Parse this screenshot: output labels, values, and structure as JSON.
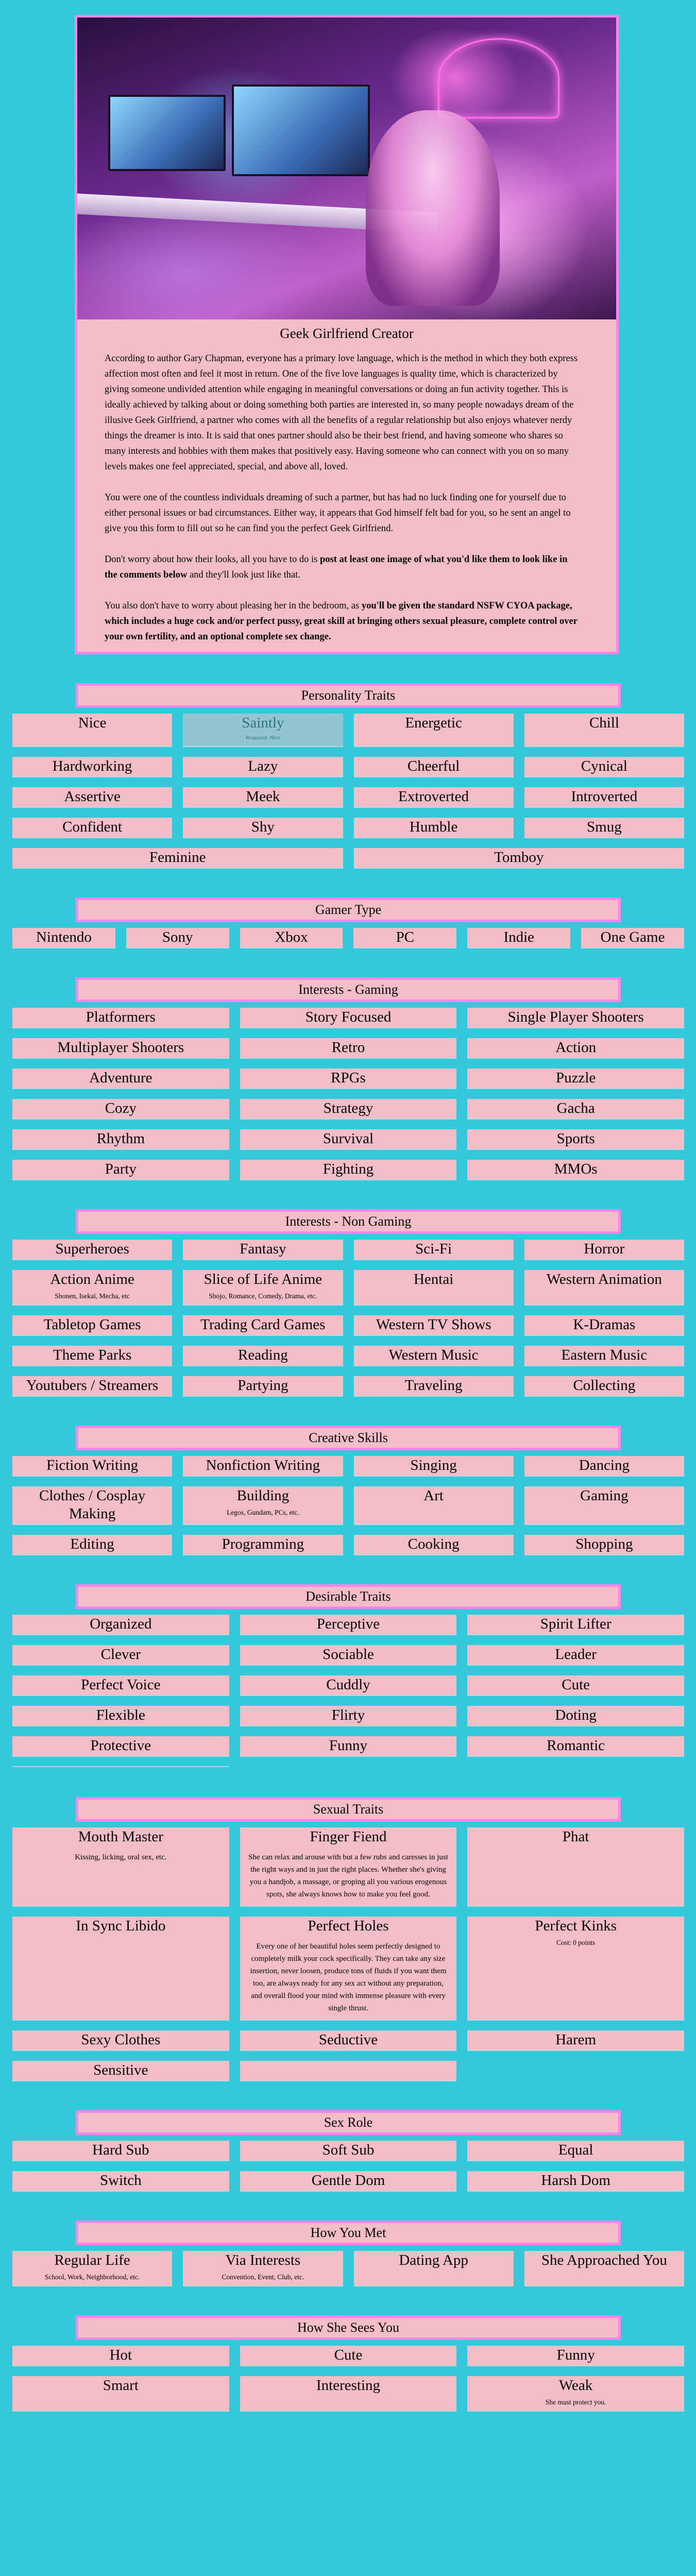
{
  "colors": {
    "background": "#33c9da",
    "tile": "#f2bdc6",
    "border": "#f985ea",
    "disabled_tile": "#93c4d2"
  },
  "intro": {
    "title": "Geek Girlfriend Creator",
    "p1": "According to author Gary Chapman, everyone has a primary love language, which is the method in which they both express affection most often and feel it most in return. One of the five love languages is quality time, which is characterized by giving someone undivided attention while engaging in meaningful conversations or doing an fun activity together. This is ideally achieved by talking about or doing something both parties are interested in, so many people nowadays dream of the illusive Geek Girlfriend, a partner who comes with all the benefits of a regular relationship but also enjoys whatever nerdy things the dreamer is into. It is said that ones partner should also be their best friend, and having someone who shares so many interests and hobbies with them makes that positively easy. Having someone who can connect with you on so many levels makes one feel appreciated, special, and above all, loved.",
    "p2": "You were one of the countless individuals dreaming of such a partner, but has had no luck finding one for yourself due to either personal issues or bad circumstances. Either way, it appears that God himself felt bad for you, so he sent an angel to give you this form to fill out so he can find you the perfect Geek Girlfriend.",
    "p3_a": "Don't worry about how their looks, all you have to do is ",
    "p3_b": "post at least one image of what you'd like them to look like in the comments below",
    "p3_c": " and they'll look just like that.",
    "p4_a": "You also don't have to worry about pleasing her in the bedroom, as ",
    "p4_b": "you'll be given the standard NSFW CYOA package, which includes a huge cock and/or perfect pussy, great skill at bringing others sexual pleasure, complete control over your own fertility, and an optional complete sex change."
  },
  "sections": [
    {
      "title": "Personality Traits",
      "cols": 4,
      "items": [
        {
          "label": "Nice"
        },
        {
          "label": "Saintly",
          "sub": "Required: Nice",
          "disabled": true
        },
        {
          "label": "Energetic"
        },
        {
          "label": "Chill"
        },
        {
          "label": "Hardworking"
        },
        {
          "label": "Lazy"
        },
        {
          "label": "Cheerful"
        },
        {
          "label": "Cynical"
        },
        {
          "label": "Assertive"
        },
        {
          "label": "Meek"
        },
        {
          "label": "Extroverted"
        },
        {
          "label": "Introverted"
        },
        {
          "label": "Confident"
        },
        {
          "label": "Shy"
        },
        {
          "label": "Humble"
        },
        {
          "label": "Smug"
        },
        {
          "label": "Feminine",
          "span": 2
        },
        {
          "label": "Tomboy",
          "span": 2
        }
      ]
    },
    {
      "title": "Gamer Type",
      "cols": 6,
      "items": [
        {
          "label": "Nintendo"
        },
        {
          "label": "Sony"
        },
        {
          "label": "Xbox"
        },
        {
          "label": "PC"
        },
        {
          "label": "Indie"
        },
        {
          "label": "One Game"
        }
      ]
    },
    {
      "title": "Interests - Gaming",
      "cols": 3,
      "items": [
        {
          "label": "Platformers"
        },
        {
          "label": "Story Focused"
        },
        {
          "label": "Single Player Shooters"
        },
        {
          "label": "Multiplayer Shooters"
        },
        {
          "label": "Retro"
        },
        {
          "label": "Action"
        },
        {
          "label": "Adventure"
        },
        {
          "label": "RPGs"
        },
        {
          "label": "Puzzle"
        },
        {
          "label": "Cozy"
        },
        {
          "label": "Strategy"
        },
        {
          "label": "Gacha"
        },
        {
          "label": "Rhythm"
        },
        {
          "label": "Survival"
        },
        {
          "label": "Sports"
        },
        {
          "label": "Party"
        },
        {
          "label": "Fighting"
        },
        {
          "label": "MMOs"
        }
      ]
    },
    {
      "title": "Interests - Non Gaming",
      "cols": 4,
      "items": [
        {
          "label": "Superheroes"
        },
        {
          "label": "Fantasy"
        },
        {
          "label": "Sci-Fi"
        },
        {
          "label": "Horror"
        },
        {
          "label": "Action Anime",
          "sub": "Shonen, Isekai, Mecha, etc"
        },
        {
          "label": "Slice of Life Anime",
          "sub": "Shojo, Romance, Comedy, Drama, etc."
        },
        {
          "label": "Hentai"
        },
        {
          "label": "Western Animation"
        },
        {
          "label": "Tabletop Games"
        },
        {
          "label": "Trading Card Games"
        },
        {
          "label": "Western TV Shows"
        },
        {
          "label": "K-Dramas"
        },
        {
          "label": "Theme Parks"
        },
        {
          "label": "Reading"
        },
        {
          "label": "Western Music"
        },
        {
          "label": "Eastern Music"
        },
        {
          "label": "Youtubers / Streamers"
        },
        {
          "label": "Partying"
        },
        {
          "label": "Traveling"
        },
        {
          "label": "Collecting"
        }
      ]
    },
    {
      "title": "Creative Skills",
      "cols": 4,
      "items": [
        {
          "label": "Fiction Writing"
        },
        {
          "label": "Nonfiction Writing"
        },
        {
          "label": "Singing"
        },
        {
          "label": "Dancing"
        },
        {
          "label": "Clothes / Cosplay Making"
        },
        {
          "label": "Building",
          "sub": "Legos, Gundam, PCs, etc."
        },
        {
          "label": "Art"
        },
        {
          "label": "Gaming"
        },
        {
          "label": "Editing"
        },
        {
          "label": "Programming"
        },
        {
          "label": "Cooking"
        },
        {
          "label": "Shopping"
        }
      ]
    },
    {
      "title": "Desirable Traits",
      "cols": 3,
      "sepline": true,
      "items": [
        {
          "label": "Organized"
        },
        {
          "label": "Perceptive"
        },
        {
          "label": "Spirit Lifter"
        },
        {
          "label": "Clever"
        },
        {
          "label": "Sociable"
        },
        {
          "label": "Leader"
        },
        {
          "label": "Perfect Voice"
        },
        {
          "label": "Cuddly"
        },
        {
          "label": "Cute"
        },
        {
          "label": "Flexible"
        },
        {
          "label": "Flirty"
        },
        {
          "label": "Doting"
        },
        {
          "label": "Protective"
        },
        {
          "label": "Funny"
        },
        {
          "label": "Romantic"
        }
      ]
    },
    {
      "title": "Sexual Traits",
      "cols": 3,
      "items": [
        {
          "label": "Mouth Master",
          "desc": "Kissing, licking, oral sex, etc."
        },
        {
          "label": "Finger Fiend",
          "desc": "She can relax and arouse with but a few rubs and caresses in just the right ways and in just the right places. Whether she's giving you a handjob, a massage, or groping all you various erogenous spots, she always knows how to make you feel good."
        },
        {
          "label": "Phat"
        },
        {
          "label": "In Sync Libido"
        },
        {
          "label": "Perfect Holes",
          "desc": "Every one of her beautiful holes seem perfectly designed to completely milk your cock specifically. They can take any size insertion, never loosen, produce tons of fluids if you want them too, are always ready for any sex act without any preparation, and overall flood your mind with immense pleasure with every single thrust."
        },
        {
          "label": "Perfect Kinks",
          "sub": "Cost: 0 points"
        },
        {
          "label": "Sexy Clothes"
        },
        {
          "label": "Seductive"
        },
        {
          "label": "Harem"
        },
        {
          "label": "Sensitive"
        },
        {
          "label": "",
          "blank": true
        }
      ]
    },
    {
      "title": "Sex Role",
      "cols": 3,
      "items": [
        {
          "label": "Hard Sub"
        },
        {
          "label": "Soft Sub"
        },
        {
          "label": "Equal"
        },
        {
          "label": "Switch"
        },
        {
          "label": "Gentle Dom"
        },
        {
          "label": "Harsh Dom"
        }
      ]
    },
    {
      "title": "How You Met",
      "cols": 4,
      "items": [
        {
          "label": "Regular Life",
          "sub": "School, Work, Neighborhood, etc."
        },
        {
          "label": "Via Interests",
          "sub": "Convention, Event, Club, etc."
        },
        {
          "label": "Dating App"
        },
        {
          "label": "She Approached You"
        }
      ]
    },
    {
      "title": "How She Sees You",
      "cols": 3,
      "items": [
        {
          "label": "Hot"
        },
        {
          "label": "Cute"
        },
        {
          "label": "Funny"
        },
        {
          "label": "Smart"
        },
        {
          "label": "Interesting"
        },
        {
          "label": "Weak",
          "sub": "She must protect you."
        }
      ]
    }
  ]
}
